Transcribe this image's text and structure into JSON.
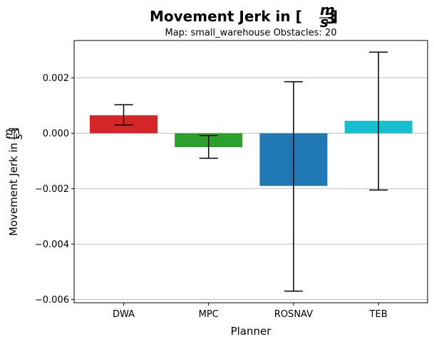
{
  "chart_data": {
    "type": "bar",
    "title": "Movement Jerk in [m/s³]",
    "title_main": "Movement Jerk in [",
    "title_unit_num": "m",
    "title_unit_den": "s",
    "title_unit_den_exp": "3",
    "title_close": "]",
    "subtitle": "Map: small_warehouse Obstacles: 20",
    "xlabel": "Planner",
    "ylabel": "Movement Jerk in [m/s³]",
    "ylabel_main": "Movement Jerk in [",
    "ylabel_unit_num": "m",
    "ylabel_unit_den": "s",
    "ylabel_unit_den_exp": "3",
    "ylabel_close": "]",
    "categories": [
      "DWA",
      "MPC",
      "ROSNAV",
      "TEB"
    ],
    "values": [
      0.00065,
      -0.0005,
      -0.0019,
      0.00045
    ],
    "error_low": [
      0.0003,
      -0.0009,
      -0.0057,
      -0.00205
    ],
    "error_high": [
      0.00103,
      -8e-05,
      0.00186,
      0.00293
    ],
    "colors": [
      "#d62728",
      "#2ca02c",
      "#1f77b4",
      "#17becf"
    ],
    "ylim": [
      -0.00612,
      0.00335
    ],
    "yticks": [
      0.002,
      0.0,
      -0.002,
      -0.004,
      -0.006
    ],
    "ytick_labels": [
      "0.002",
      "0.000",
      "−0.002",
      "−0.004",
      "−0.006"
    ],
    "grid": "horizontal",
    "legend": "none"
  }
}
